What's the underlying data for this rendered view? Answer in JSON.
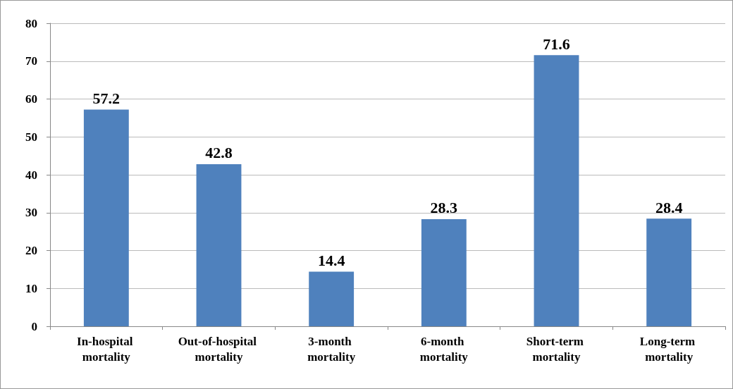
{
  "chart_data": {
    "type": "bar",
    "categories": [
      "In-hospital mortality",
      "Out-of-hospital mortality",
      "3-month mortality",
      "6-month mortality",
      "Short-term mortality",
      "Long-term mortality"
    ],
    "values": [
      57.2,
      42.8,
      14.4,
      28.3,
      71.6,
      28.4
    ],
    "color": "#4f81bd",
    "ylim": [
      0,
      80
    ],
    "yticks": [
      0,
      10,
      20,
      30,
      40,
      50,
      60,
      70,
      80
    ],
    "grid": "y",
    "data_labels": true
  }
}
